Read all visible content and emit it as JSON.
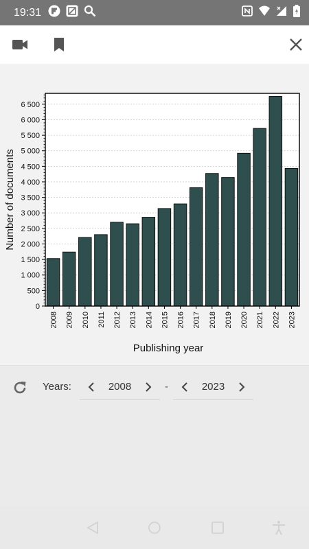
{
  "status_bar": {
    "time": "19:31",
    "left_icons": [
      "flipboard-icon",
      "screenshot-icon",
      "search-icon"
    ],
    "right_icons": [
      "nfc-icon",
      "wifi-icon",
      "signal-icon",
      "battery-icon"
    ]
  },
  "toolbar": {
    "icons": [
      "video-camera-icon",
      "bookmark-icon",
      "close-icon"
    ]
  },
  "chart_data": {
    "type": "bar",
    "categories": [
      "2008",
      "2009",
      "2010",
      "2011",
      "2012",
      "2013",
      "2014",
      "2015",
      "2016",
      "2017",
      "2018",
      "2019",
      "2020",
      "2021",
      "2022",
      "2023"
    ],
    "values": [
      1530,
      1740,
      2210,
      2300,
      2700,
      2650,
      2860,
      3140,
      3290,
      3810,
      4270,
      4140,
      4920,
      5720,
      6750,
      4430
    ],
    "xlabel": "Publishing year",
    "ylabel": "Number of documents",
    "ylim": [
      0,
      6850
    ],
    "yticks": [
      0,
      500,
      1000,
      1500,
      2000,
      2500,
      3000,
      3500,
      4000,
      4500,
      5000,
      5500,
      6000,
      6500
    ],
    "ytick_labels": [
      "0",
      "500",
      "1 000",
      "1 500",
      "2 000",
      "2 500",
      "3 000",
      "3 500",
      "4 000",
      "4 500",
      "5 000",
      "5 500",
      "6 000",
      "6 500"
    ],
    "bar_color": "#2f4f4f",
    "grid": true
  },
  "controls": {
    "years_label": "Years:",
    "from_year": "2008",
    "separator": "-",
    "to_year": "2023"
  },
  "nav_bar": {
    "icons": [
      "back-icon",
      "home-icon",
      "recents-icon",
      "accessibility-icon"
    ]
  }
}
